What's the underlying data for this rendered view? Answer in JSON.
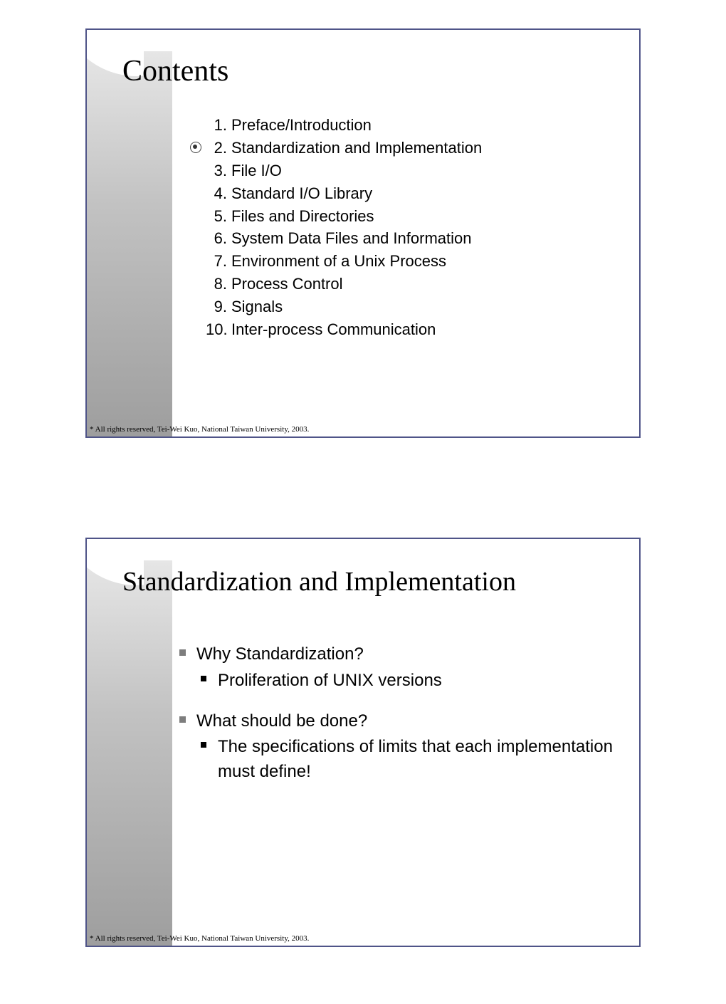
{
  "colors": {
    "slide_border": "#4f5488",
    "background": "#ffffff",
    "sidebar_gradient_top": "#e6e6e6",
    "sidebar_gradient_mid": "#c2c2c2",
    "sidebar_gradient_bottom": "#9e9e9e",
    "title_text": "#000000",
    "body_text": "#000000",
    "level1_bullet": "#7d7d7d",
    "level2_bullet": "#000000"
  },
  "typography": {
    "title_font": "Times New Roman",
    "title_size_pt": 32,
    "body_font": "Arial",
    "body_size_pt": 17,
    "footer_font": "Times New Roman",
    "footer_size_pt": 8
  },
  "slide1": {
    "title": "Contents",
    "footer": "* All rights reserved, Tei-Wei Kuo, National Taiwan University, 2003.",
    "items": [
      {
        "n": "1.",
        "text": "Preface/Introduction",
        "selected": false
      },
      {
        "n": "2.",
        "text": "Standardization and Implementation",
        "selected": true
      },
      {
        "n": "3.",
        "text": "File I/O",
        "selected": false
      },
      {
        "n": "4.",
        "text": "Standard I/O Library",
        "selected": false
      },
      {
        "n": "5.",
        "text": "Files and Directories",
        "selected": false
      },
      {
        "n": "6.",
        "text": "System Data Files and Information",
        "selected": false
      },
      {
        "n": "7.",
        "text": "Environment of a Unix Process",
        "selected": false
      },
      {
        "n": "8.",
        "text": "Process Control",
        "selected": false
      },
      {
        "n": "9.",
        "text": "Signals",
        "selected": false
      },
      {
        "n": "10.",
        "text": "Inter-process Communication",
        "selected": false
      }
    ]
  },
  "slide2": {
    "title": "Standardization and Implementation",
    "footer": "* All rights reserved, Tei-Wei Kuo, National Taiwan University, 2003.",
    "points": [
      {
        "text": "Why Standardization?",
        "sub": [
          "Proliferation of UNIX versions"
        ]
      },
      {
        "text": "What should be done?",
        "sub": [
          "The specifications of limits that each implementation must define!"
        ]
      }
    ]
  }
}
